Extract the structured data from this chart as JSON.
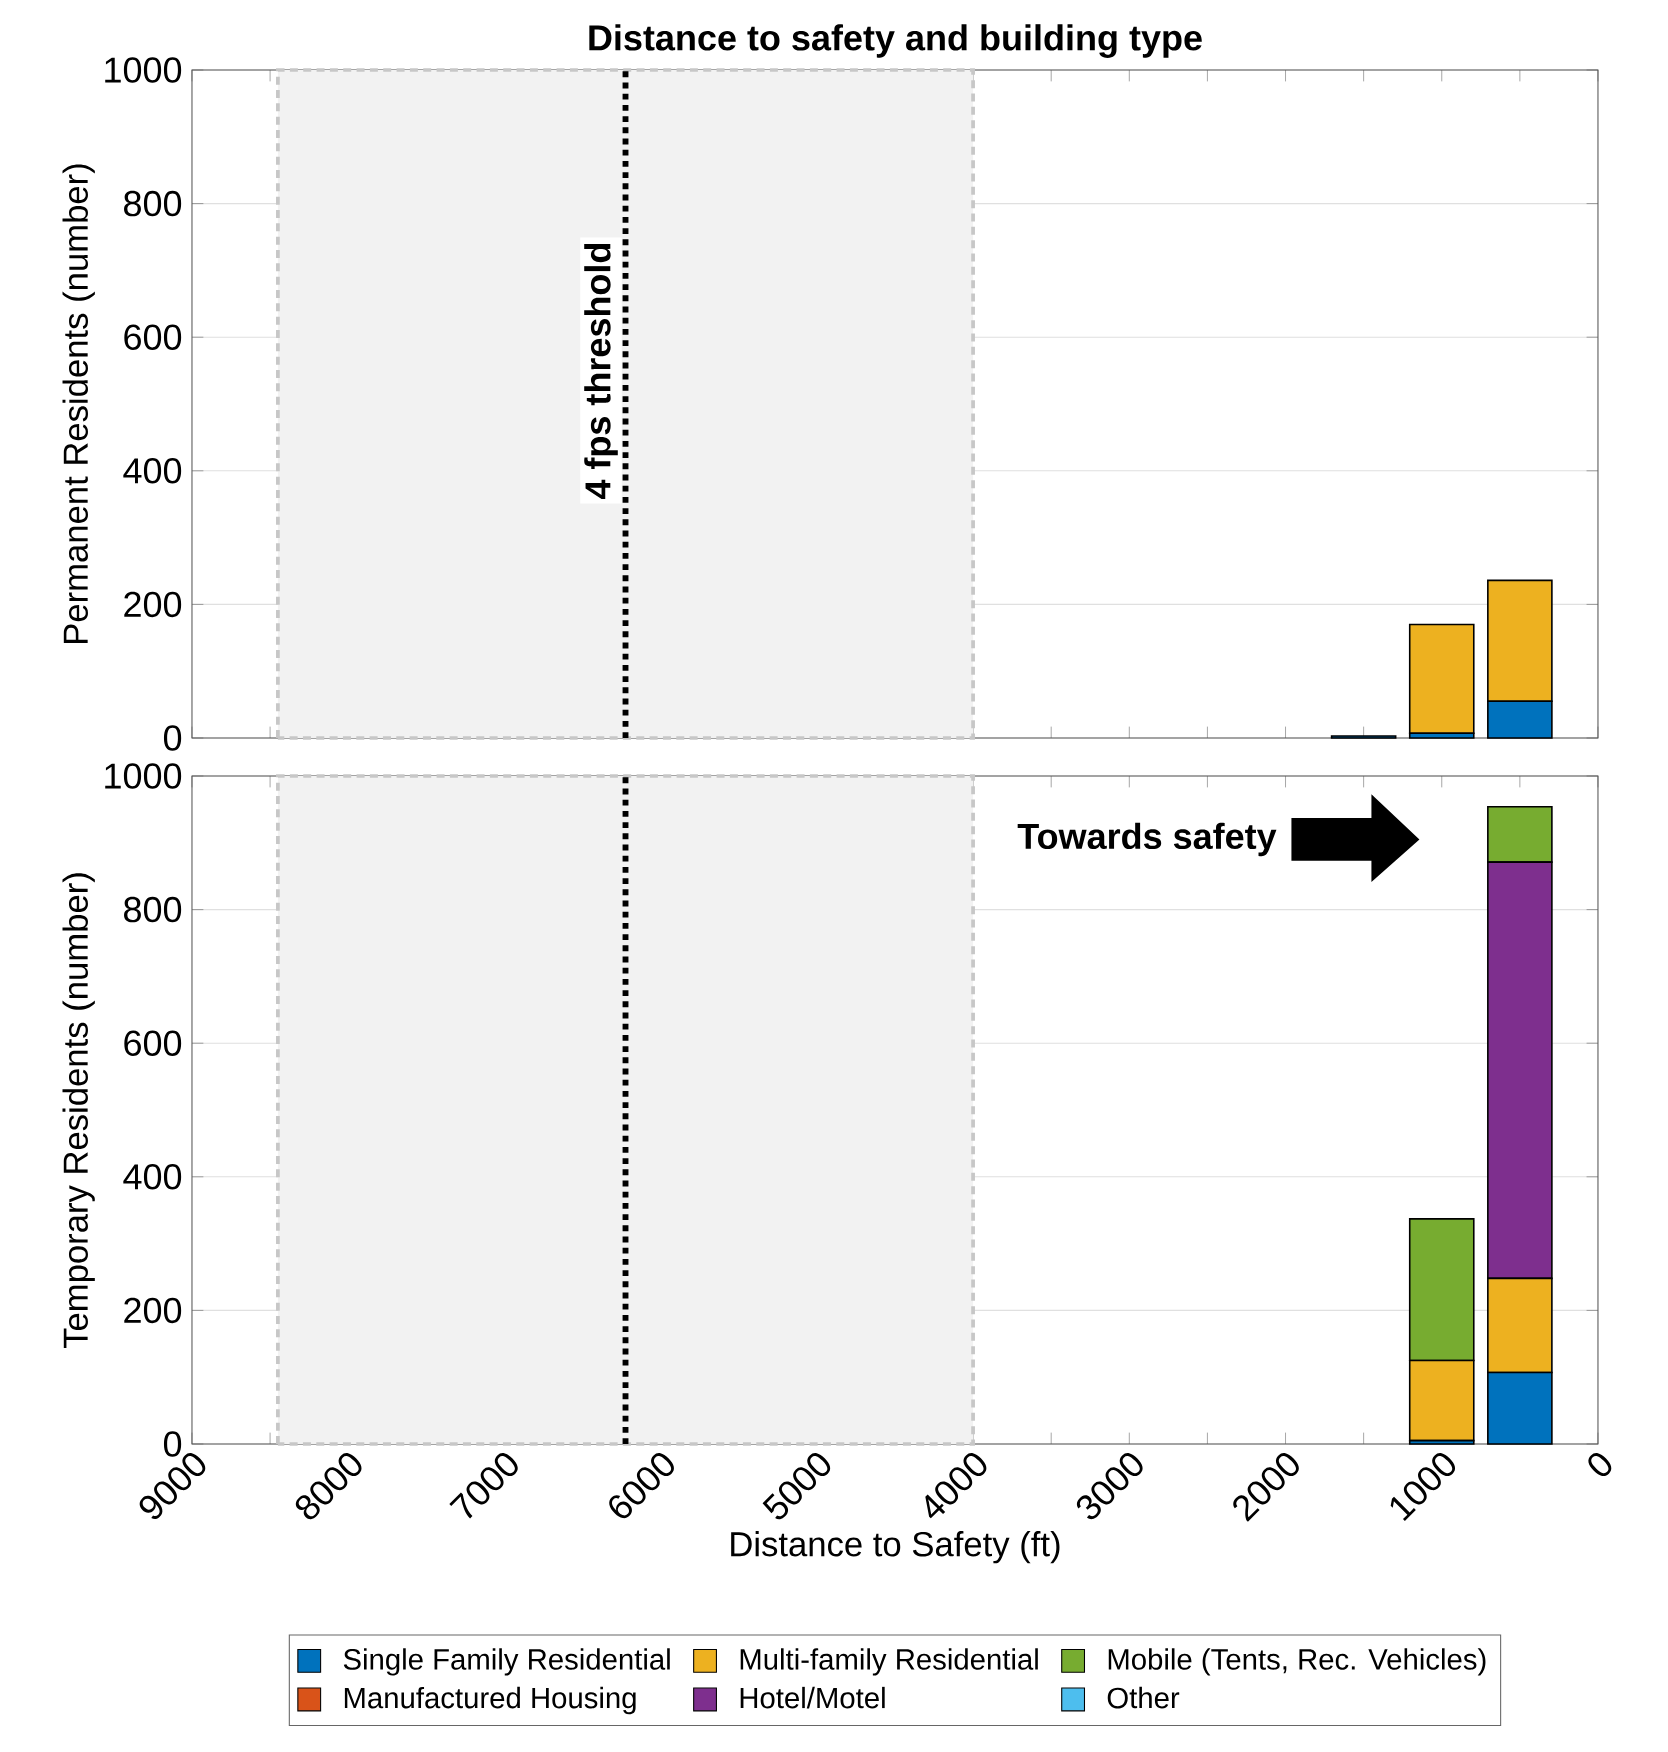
{
  "chart_data": [
    {
      "type": "bar",
      "stacked": true,
      "title": "Distance to safety and building type",
      "ylabel": "Permanent Residents (number)",
      "x": [
        500,
        1000,
        1500
      ],
      "series": [
        {
          "color": "#0072bd",
          "values": [
            55,
            7,
            3
          ]
        },
        {
          "color": "#d95319",
          "values": [
            0,
            0,
            0
          ]
        },
        {
          "color": "#edb120",
          "values": [
            181,
            163,
            0
          ]
        },
        {
          "color": "#7e2f8e",
          "values": [
            0,
            0,
            0
          ]
        },
        {
          "color": "#77ac30",
          "values": [
            0,
            0,
            0
          ]
        },
        {
          "color": "#4dbeee",
          "values": [
            0,
            0,
            0
          ]
        }
      ],
      "xlim": [
        9000,
        0
      ],
      "xticks": [
        9000,
        {
          "value": 8500,
          "label": null
        },
        8000,
        {
          "value": 7500,
          "label": null
        },
        7000,
        {
          "value": 6500,
          "label": null
        },
        6000,
        {
          "value": 5500,
          "label": null
        },
        5000,
        {
          "value": 4500,
          "label": null
        },
        4000,
        {
          "value": 3500,
          "label": null
        },
        3000,
        {
          "value": 2500,
          "label": null
        },
        2000,
        {
          "value": 1500,
          "label": null
        },
        1000,
        {
          "value": 500,
          "label": null
        },
        0
      ],
      "ylim": [
        0,
        1000
      ],
      "yticks": [
        0,
        200,
        400,
        600,
        800,
        1000
      ],
      "tick_labels": "y",
      "grid": "y",
      "bands": [
        {
          "axis": "x",
          "from": 8450,
          "to": 4000,
          "color": "#f2f2f2"
        }
      ],
      "ref_lines": [
        {
          "axis": "x",
          "value": 6225,
          "label": "4 fps threshold",
          "color": "#000000",
          "line_style": "dotted"
        }
      ]
    },
    {
      "type": "bar",
      "stacked": true,
      "xlabel": "Distance to Safety (ft)",
      "ylabel": "Temporary Residents (number)",
      "x": [
        500,
        1000,
        1500
      ],
      "series": [
        {
          "name": "Single Family Residential",
          "color": "#0072bd",
          "values": [
            107,
            5,
            0
          ]
        },
        {
          "name": "Manufactured Housing",
          "color": "#d95319",
          "values": [
            0,
            0,
            0
          ]
        },
        {
          "name": "Multi-family Residential",
          "color": "#edb120",
          "values": [
            141,
            120,
            0
          ]
        },
        {
          "name": "Hotel/Motel",
          "color": "#7e2f8e",
          "values": [
            623,
            0,
            0
          ]
        },
        {
          "name": "Mobile (Tents, Rec. Vehicles)",
          "color": "#77ac30",
          "values": [
            83,
            212,
            0
          ]
        },
        {
          "name": "Other",
          "color": "#4dbeee",
          "values": [
            0,
            0,
            0
          ]
        }
      ],
      "xlim": [
        9000,
        0
      ],
      "xticks": [
        9000,
        {
          "value": 8500,
          "label": null
        },
        8000,
        {
          "value": 7500,
          "label": null
        },
        7000,
        {
          "value": 6500,
          "label": null
        },
        6000,
        {
          "value": 5500,
          "label": null
        },
        5000,
        {
          "value": 4500,
          "label": null
        },
        4000,
        {
          "value": 3500,
          "label": null
        },
        3000,
        {
          "value": 2500,
          "label": null
        },
        2000,
        {
          "value": 1500,
          "label": null
        },
        1000,
        {
          "value": 500,
          "label": null
        },
        0
      ],
      "ylim": [
        0,
        1000
      ],
      "yticks": [
        0,
        200,
        400,
        600,
        800,
        1000
      ],
      "grid": "y",
      "legend": "bottom",
      "bands": [
        {
          "axis": "x",
          "from": 8450,
          "to": 4000,
          "color": "#f2f2f2"
        }
      ],
      "ref_lines": [
        {
          "axis": "x",
          "value": 6225,
          "color": "#000000",
          "line_style": "dotted"
        }
      ],
      "annotations": [
        "Towards safety"
      ]
    }
  ]
}
